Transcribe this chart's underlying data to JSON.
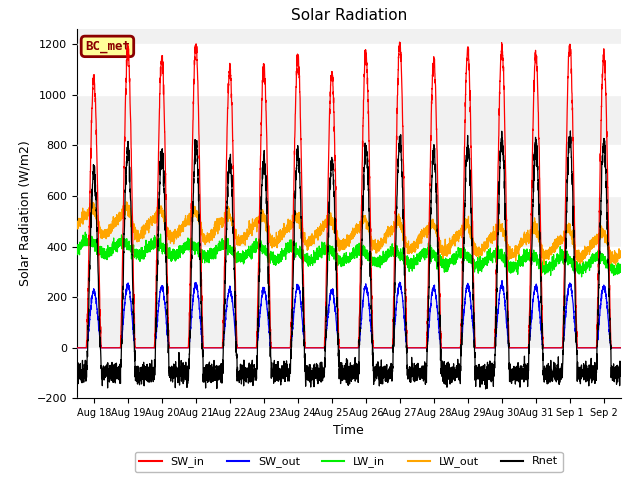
{
  "title": "Solar Radiation",
  "xlabel": "Time",
  "ylabel": "Solar Radiation (W/m2)",
  "ylim": [
    -200,
    1260
  ],
  "yticks": [
    -200,
    0,
    200,
    400,
    600,
    800,
    1000,
    1200
  ],
  "n_days": 16,
  "label_text": "BC_met",
  "label_bg": "#FFFF99",
  "label_border": "#8B0000",
  "colors": {
    "SW_in": "#FF0000",
    "SW_out": "#0000FF",
    "LW_in": "#00EE00",
    "LW_out": "#FFA500",
    "Rnet": "#000000"
  },
  "xticklabels": [
    "Aug 18",
    "Aug 19",
    "Aug 20",
    "Aug 21",
    "Aug 22",
    "Aug 23",
    "Aug 24",
    "Aug 25",
    "Aug 26",
    "Aug 27",
    "Aug 28",
    "Aug 29",
    "Aug 30",
    "Aug 31",
    "Sep 1",
    "Sep 2"
  ],
  "plot_bg": "#FFFFFF",
  "fig_bg": "#FFFFFF"
}
